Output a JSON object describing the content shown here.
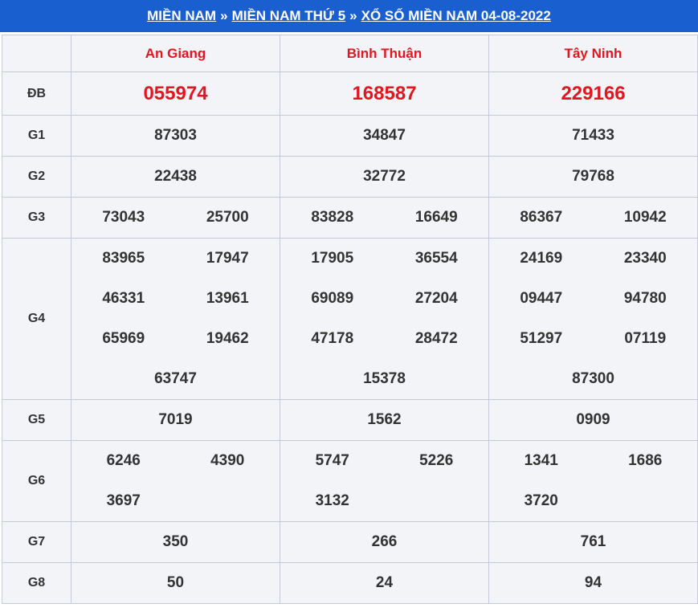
{
  "breadcrumb": {
    "link1": "MIỀN NAM",
    "link2": "MIỀN NAM THỨ 5",
    "link3": "XỔ SỐ MIỀN NAM 04-08-2022",
    "separator": "»"
  },
  "provinces": [
    "An Giang",
    "Bình Thuận",
    "Tây Ninh"
  ],
  "labels": {
    "db": "ĐB",
    "g1": "G1",
    "g2": "G2",
    "g3": "G3",
    "g4": "G4",
    "g5": "G5",
    "g6": "G6",
    "g7": "G7",
    "g8": "G8"
  },
  "results": {
    "db": [
      "055974",
      "168587",
      "229166"
    ],
    "g1": [
      "87303",
      "34847",
      "71433"
    ],
    "g2": [
      "22438",
      "32772",
      "79768"
    ],
    "g3": [
      [
        "73043",
        "25700"
      ],
      [
        "83828",
        "16649"
      ],
      [
        "86367",
        "10942"
      ]
    ],
    "g4": [
      [
        "83965",
        "17947",
        "46331",
        "13961",
        "65969",
        "19462",
        "63747"
      ],
      [
        "17905",
        "36554",
        "69089",
        "27204",
        "47178",
        "28472",
        "15378"
      ],
      [
        "24169",
        "23340",
        "09447",
        "94780",
        "51297",
        "07119",
        "87300"
      ]
    ],
    "g5": [
      "7019",
      "1562",
      "0909"
    ],
    "g6": [
      [
        "6246",
        "4390",
        "3697"
      ],
      [
        "5747",
        "5226",
        "3132"
      ],
      [
        "1341",
        "1686",
        "3720"
      ]
    ],
    "g7": [
      "350",
      "266",
      "761"
    ],
    "g8": [
      "50",
      "24",
      "94"
    ]
  },
  "colors": {
    "header_bg": "#1a5fd0",
    "special_prize": "#e3161f",
    "province_name": "#e3161f",
    "number_text": "#333333",
    "table_bg": "#f2f4f8"
  }
}
